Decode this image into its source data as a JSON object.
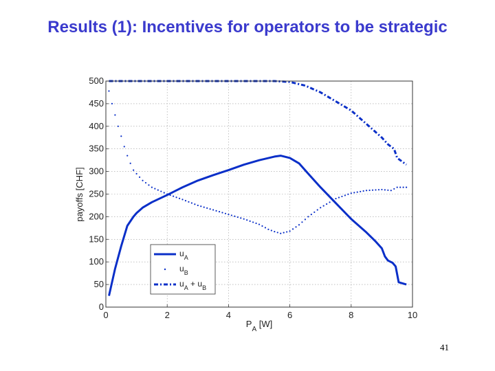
{
  "slide": {
    "title": "Results (1): Incentives for operators to be strategic",
    "page_number": "41"
  },
  "chart_data": {
    "type": "line",
    "title": "",
    "xlabel": "P_A [W]",
    "ylabel": "payoffs [CHF]",
    "xlim": [
      0,
      10
    ],
    "ylim": [
      0,
      500
    ],
    "xticks": [
      0,
      2,
      4,
      6,
      8,
      10
    ],
    "yticks": [
      0,
      50,
      100,
      150,
      200,
      250,
      300,
      350,
      400,
      450,
      500
    ],
    "grid": true,
    "legend_position": "bottom-left",
    "series": [
      {
        "name": "uA",
        "style": "solid",
        "color": "#0a2fc8",
        "x": [
          0.1,
          0.3,
          0.5,
          0.7,
          0.9,
          1.0,
          1.2,
          1.5,
          2.0,
          2.5,
          3.0,
          3.5,
          4.0,
          4.5,
          5.0,
          5.5,
          5.7,
          6.0,
          6.3,
          6.6,
          7.0,
          7.5,
          8.0,
          8.5,
          8.8,
          9.0,
          9.1,
          9.2,
          9.35,
          9.45,
          9.55,
          9.8
        ],
        "y": [
          25,
          85,
          135,
          180,
          200,
          208,
          220,
          232,
          248,
          265,
          280,
          292,
          303,
          315,
          325,
          333,
          335,
          330,
          318,
          295,
          265,
          230,
          195,
          165,
          145,
          130,
          112,
          103,
          98,
          90,
          55,
          50
        ]
      },
      {
        "name": "uB",
        "style": "dotted",
        "color": "#0a2fc8",
        "x": [
          0.1,
          0.2,
          0.3,
          0.4,
          0.5,
          0.6,
          0.7,
          0.8,
          0.9,
          1.0,
          1.2,
          1.5,
          2.0,
          2.5,
          3.0,
          3.5,
          4.0,
          4.5,
          5.0,
          5.3,
          5.5,
          5.7,
          6.0,
          6.3,
          6.6,
          7.0,
          7.5,
          8.0,
          8.5,
          9.0,
          9.3,
          9.5,
          9.8
        ],
        "y": [
          478,
          450,
          425,
          400,
          378,
          355,
          335,
          318,
          303,
          295,
          280,
          265,
          250,
          238,
          225,
          215,
          205,
          195,
          183,
          172,
          167,
          163,
          168,
          182,
          200,
          220,
          240,
          252,
          258,
          260,
          258,
          265,
          265
        ]
      },
      {
        "name": "uA + uB",
        "style": "dash-dot",
        "color": "#0a2fc8",
        "x": [
          0.1,
          1.0,
          2.0,
          3.0,
          4.0,
          5.0,
          5.5,
          6.0,
          6.5,
          7.0,
          7.5,
          8.0,
          8.5,
          9.0,
          9.2,
          9.4,
          9.5,
          9.6,
          9.8
        ],
        "y": [
          500,
          500,
          500,
          500,
          500,
          500,
          500,
          498,
          490,
          475,
          455,
          435,
          405,
          375,
          360,
          350,
          330,
          325,
          315
        ]
      }
    ]
  }
}
